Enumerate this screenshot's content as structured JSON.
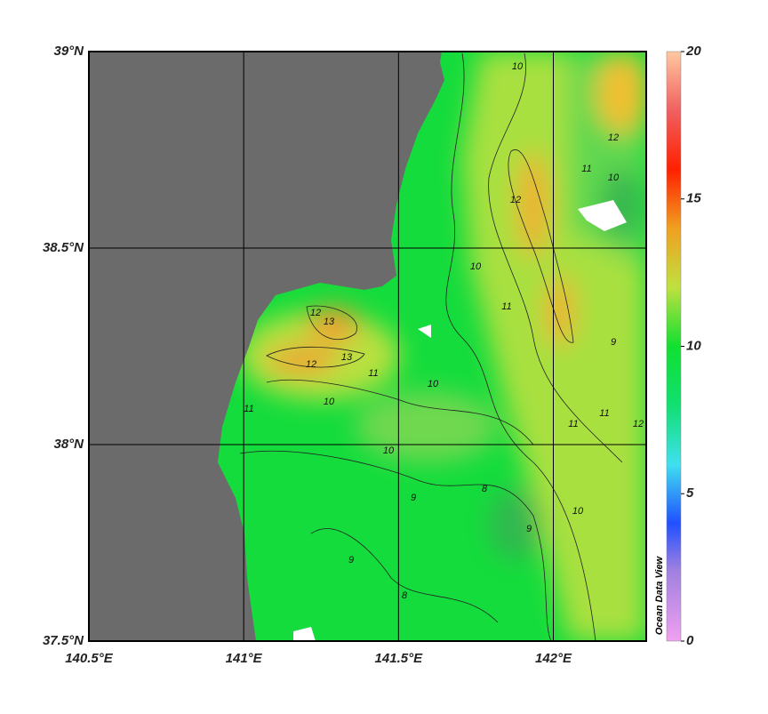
{
  "map": {
    "xlim": [
      140.5,
      142.3
    ],
    "ylim": [
      37.5,
      39
    ],
    "xticks": [
      {
        "value": 140.5,
        "label": "140.5°E"
      },
      {
        "value": 141,
        "label": "141°E"
      },
      {
        "value": 141.5,
        "label": "141.5°E"
      },
      {
        "value": 142,
        "label": "142°E"
      }
    ],
    "yticks": [
      {
        "value": 37.5,
        "label": "37.5°N"
      },
      {
        "value": 38,
        "label": "38°N"
      },
      {
        "value": 38.5,
        "label": "38.5°N"
      },
      {
        "value": 39,
        "label": "39°N"
      }
    ],
    "grid": true,
    "colorbar": {
      "lim": [
        0,
        20
      ],
      "ticks": [
        0,
        5,
        10,
        15,
        20
      ]
    },
    "watermark": "Ocean Data View",
    "contour_labels": [
      "10",
      "12",
      "11",
      "12",
      "10",
      "11",
      "12",
      "13",
      "12",
      "13",
      "11",
      "10",
      "10",
      "11",
      "10",
      "9",
      "9",
      "8",
      "10",
      "11",
      "11",
      "9",
      "8",
      "9",
      "12",
      "10"
    ]
  }
}
